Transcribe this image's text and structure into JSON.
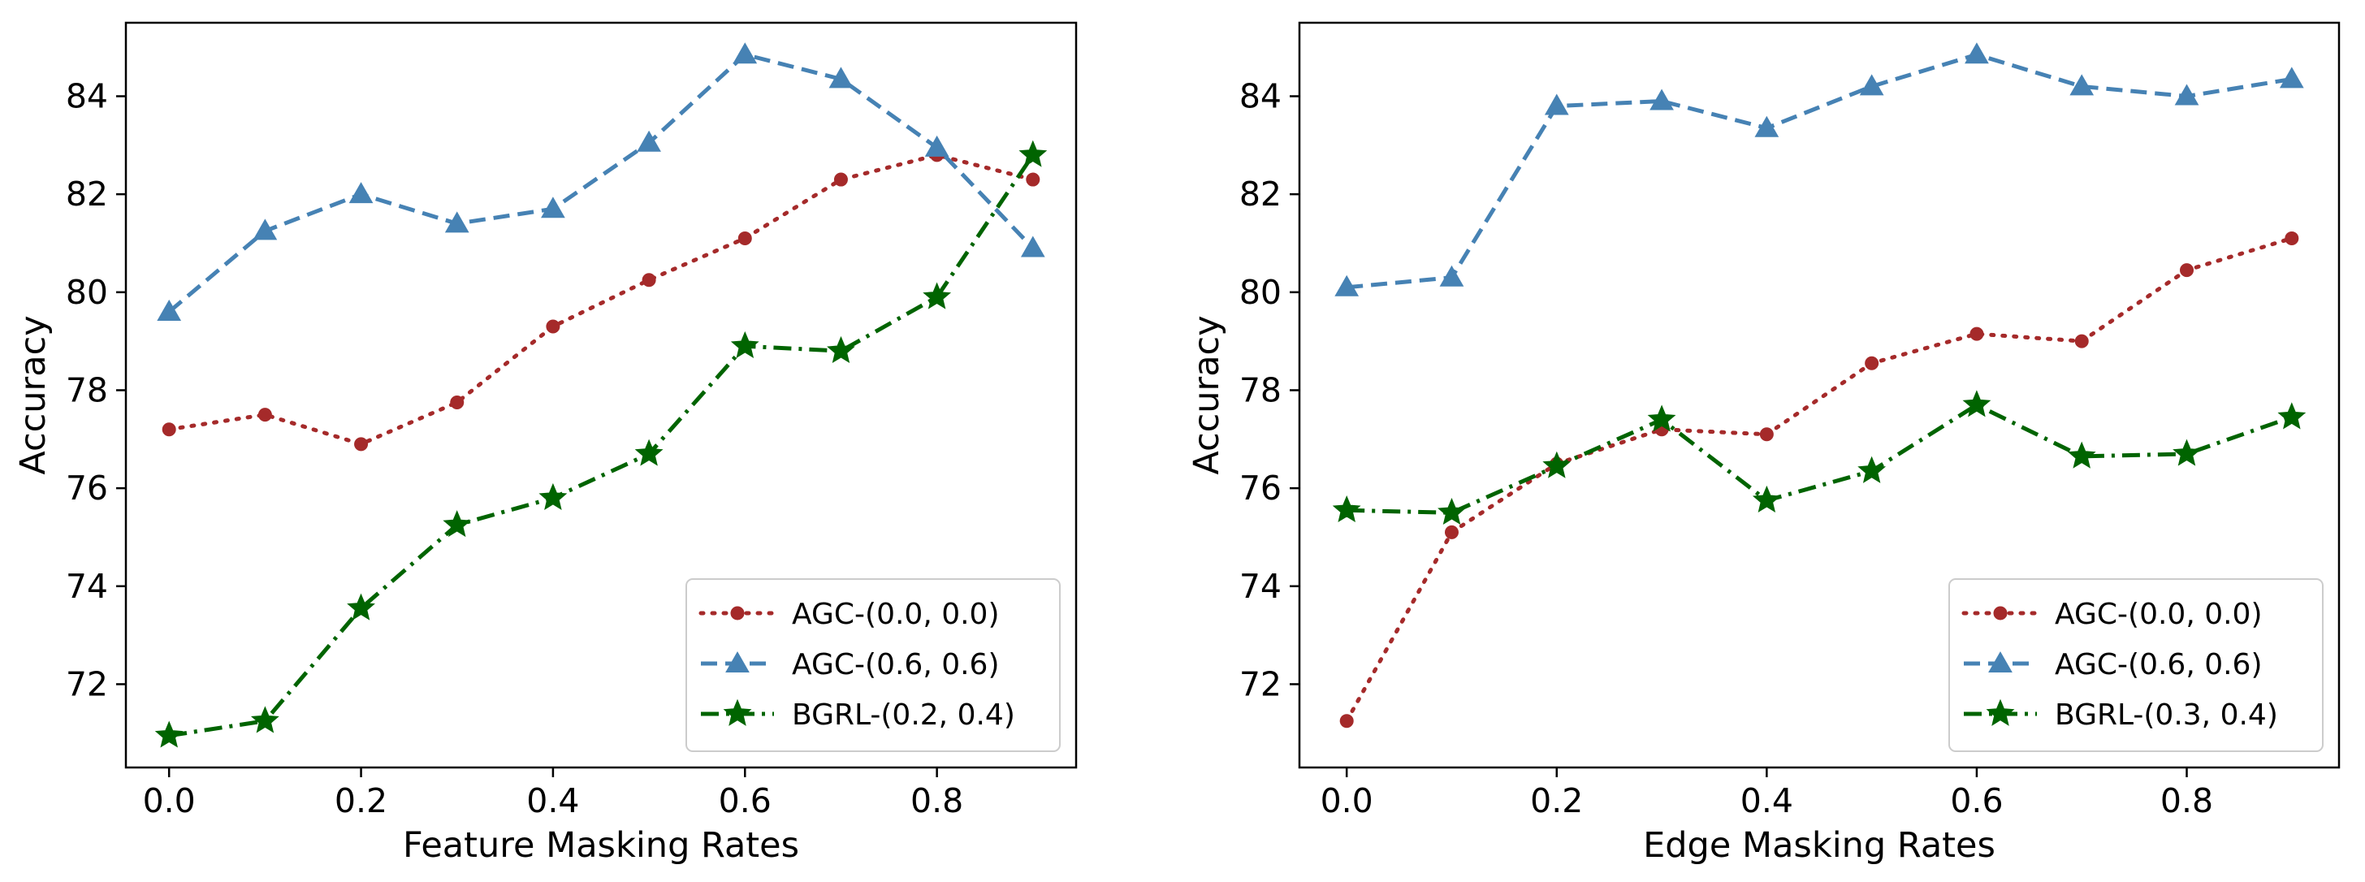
{
  "chart_data": [
    {
      "type": "line",
      "xlabel": "Feature Masking Rates",
      "ylabel": "Accuracy",
      "xlim": [
        -0.045,
        0.945
      ],
      "ylim": [
        70.3,
        85.5
      ],
      "xticks": [
        0.0,
        0.2,
        0.4,
        0.6,
        0.8
      ],
      "xtick_labels": [
        "0.0",
        "0.2",
        "0.4",
        "0.6",
        "0.8"
      ],
      "yticks": [
        72,
        74,
        76,
        78,
        80,
        82,
        84
      ],
      "ytick_labels": [
        "72",
        "74",
        "76",
        "78",
        "80",
        "82",
        "84"
      ],
      "grid": false,
      "legend_position": "lower-right",
      "x": [
        0.0,
        0.1,
        0.2,
        0.3,
        0.4,
        0.5,
        0.6,
        0.7,
        0.8,
        0.9
      ],
      "series": [
        {
          "name": "AGC-(0.0, 0.0)",
          "color": "#a52a2a",
          "style": "dotted",
          "marker": "circle",
          "values": [
            77.2,
            77.5,
            76.9,
            77.75,
            79.3,
            80.25,
            81.1,
            82.3,
            82.8,
            82.3
          ]
        },
        {
          "name": "AGC-(0.6, 0.6)",
          "color": "#4682b4",
          "style": "dashed",
          "marker": "triangle",
          "values": [
            79.6,
            81.25,
            82.0,
            81.4,
            81.7,
            83.05,
            84.85,
            84.35,
            82.95,
            80.9
          ]
        },
        {
          "name": "BGRL-(0.2, 0.4)",
          "color": "#006400",
          "style": "dashdot",
          "marker": "star",
          "values": [
            70.95,
            71.25,
            73.55,
            75.25,
            75.8,
            76.7,
            78.9,
            78.8,
            79.9,
            82.8
          ]
        }
      ]
    },
    {
      "type": "line",
      "xlabel": "Edge Masking Rates",
      "ylabel": "Accuracy",
      "xlim": [
        -0.045,
        0.945
      ],
      "ylim": [
        70.3,
        85.5
      ],
      "xticks": [
        0.0,
        0.2,
        0.4,
        0.6,
        0.8
      ],
      "xtick_labels": [
        "0.0",
        "0.2",
        "0.4",
        "0.6",
        "0.8"
      ],
      "yticks": [
        72,
        74,
        76,
        78,
        80,
        82,
        84
      ],
      "ytick_labels": [
        "72",
        "74",
        "76",
        "78",
        "80",
        "82",
        "84"
      ],
      "grid": false,
      "legend_position": "lower-right",
      "x": [
        0.0,
        0.1,
        0.2,
        0.3,
        0.4,
        0.5,
        0.6,
        0.7,
        0.8,
        0.9
      ],
      "series": [
        {
          "name": "AGC-(0.0, 0.0)",
          "color": "#a52a2a",
          "style": "dotted",
          "marker": "circle",
          "values": [
            71.25,
            75.1,
            76.5,
            77.2,
            77.1,
            78.55,
            79.15,
            79.0,
            80.45,
            81.1
          ]
        },
        {
          "name": "AGC-(0.6, 0.6)",
          "color": "#4682b4",
          "style": "dashed",
          "marker": "triangle",
          "values": [
            80.1,
            80.3,
            83.8,
            83.9,
            83.35,
            84.2,
            84.85,
            84.2,
            84.0,
            84.35
          ]
        },
        {
          "name": "BGRL-(0.3, 0.4)",
          "color": "#006400",
          "style": "dashdot",
          "marker": "star",
          "values": [
            75.55,
            75.5,
            76.45,
            77.4,
            75.75,
            76.35,
            77.7,
            76.65,
            76.7,
            77.45
          ]
        }
      ]
    }
  ]
}
